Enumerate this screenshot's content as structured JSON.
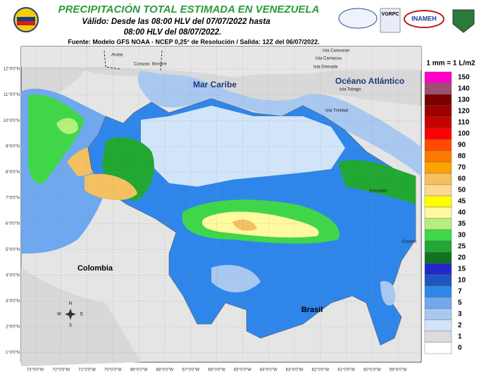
{
  "header": {
    "title": "PRECIPITACIÓN TOTAL ESTIMADA EN VENEZUELA",
    "valid_from": "Válido: Desde las 08:00 HLV del 07/07/2022 hasta",
    "valid_to": "08:00 HLV del 08/07/2022.",
    "source": "Fuente: Modelo GFS NOAA - NCEP 0,25° de Resolución / Salida: 12Z del 06/07/2022.",
    "logos": [
      "VGRPC",
      "INAMEH"
    ]
  },
  "legend": {
    "title": "1 mm = 1 L/m2",
    "items": [
      {
        "value": 150,
        "color": "#ff00c8"
      },
      {
        "value": 140,
        "color": "#9c4f72"
      },
      {
        "value": 130,
        "color": "#7a0000"
      },
      {
        "value": 120,
        "color": "#9e0000"
      },
      {
        "value": 110,
        "color": "#c80000"
      },
      {
        "value": 100,
        "color": "#ff0000"
      },
      {
        "value": 90,
        "color": "#ff4a00"
      },
      {
        "value": 80,
        "color": "#ff7a00"
      },
      {
        "value": 70,
        "color": "#ffa200"
      },
      {
        "value": 60,
        "color": "#f5c060"
      },
      {
        "value": 50,
        "color": "#ffd890"
      },
      {
        "value": 45,
        "color": "#ffff00"
      },
      {
        "value": 40,
        "color": "#fffaa0"
      },
      {
        "value": 35,
        "color": "#b6f07a"
      },
      {
        "value": 30,
        "color": "#3fd64a"
      },
      {
        "value": 25,
        "color": "#20a832"
      },
      {
        "value": 20,
        "color": "#0f7320"
      },
      {
        "value": 15,
        "color": "#2228c8"
      },
      {
        "value": 10,
        "color": "#1f55c0"
      },
      {
        "value": 7,
        "color": "#2f86ea"
      },
      {
        "value": 5,
        "color": "#72a9ee"
      },
      {
        "value": 3,
        "color": "#a8c8f0"
      },
      {
        "value": 2,
        "color": "#d2e4f8"
      },
      {
        "value": 1,
        "color": "#dcdcdc"
      },
      {
        "value": 0,
        "color": "#ffffff"
      }
    ]
  },
  "map": {
    "labels": [
      "Aruba",
      "Curazao",
      "Bonaire",
      "Mar Caribe",
      "Océano Atlántico",
      "Isla Canouvan",
      "Isla Carriacou",
      "Isla Grenada",
      "Isla Tobago",
      "Isla Trinidad",
      "Colombia",
      "Brasil",
      "Guyana",
      "Esequibo"
    ],
    "compass": [
      "N",
      "S",
      "E",
      "W"
    ],
    "lat_labels": [
      "12°0'0\"N",
      "11°0'0\"N",
      "10°0'0\"N",
      "9°0'0\"N",
      "8°0'0\"N",
      "7°0'0\"N",
      "6°0'0\"N",
      "5°0'0\"N",
      "4°0'0\"N",
      "3°0'0\"N",
      "2°0'0\"N",
      "1°0'0\"N"
    ],
    "lon_labels": [
      "73°0'0\"W",
      "72°0'0\"W",
      "71°0'0\"W",
      "70°0'0\"W",
      "69°0'0\"W",
      "68°0'0\"W",
      "67°0'0\"W",
      "66°0'0\"W",
      "65°0'0\"W",
      "64°0'0\"W",
      "63°0'0\"W",
      "62°0'0\"W",
      "61°0'0\"W",
      "60°0'0\"W",
      "59°0'0\"W"
    ]
  }
}
